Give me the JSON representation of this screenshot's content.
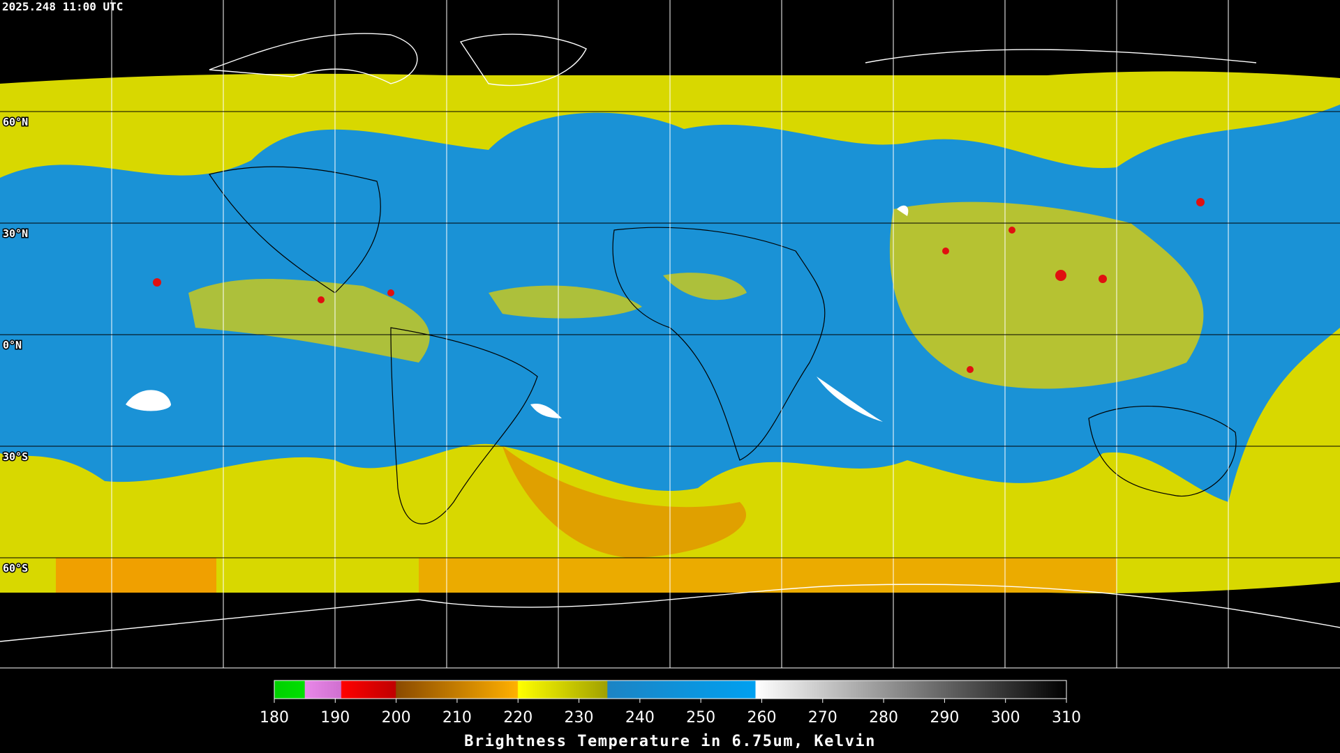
{
  "header": {
    "timestamp": "2025.248 11:00 UTC"
  },
  "map": {
    "lat_labels": [
      "60°N",
      "30°N",
      "0°N",
      "30°S",
      "60°S"
    ]
  },
  "colorbar": {
    "range": [
      180,
      310
    ],
    "ticks": [
      180,
      190,
      200,
      210,
      220,
      230,
      240,
      250,
      260,
      270,
      280,
      290,
      300,
      310
    ],
    "title": "Brightness Temperature in 6.75um, Kelvin"
  }
}
